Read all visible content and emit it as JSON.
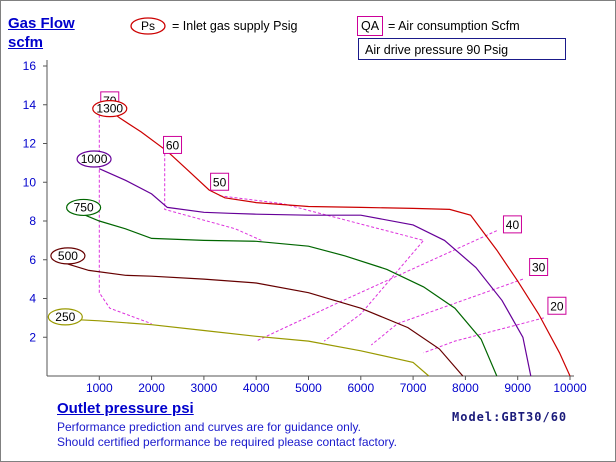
{
  "chart_data": {
    "type": "line",
    "ylabel_line1": "Gas Flow",
    "ylabel_line2": "scfm",
    "xlabel": "Outlet pressure   psi",
    "legend": {
      "ps_symbol": "Ps",
      "ps_text": "= Inlet gas supply  Psig",
      "qa_symbol": "QA",
      "qa_text": "= Air consumption  Scfm",
      "drive_pressure": "Air drive pressure  90 Psig"
    },
    "xlim": [
      0,
      10000
    ],
    "ylim": [
      0,
      16
    ],
    "x_ticks": [
      1000,
      2000,
      3000,
      4000,
      5000,
      6000,
      7000,
      8000,
      9000,
      10000
    ],
    "y_ticks": [
      2,
      4,
      6,
      8,
      10,
      12,
      14,
      16
    ],
    "series": [
      {
        "name": "1300",
        "color": "#cc0000",
        "label": "1300",
        "points": [
          [
            1000,
            14.1
          ],
          [
            1400,
            13.3
          ],
          [
            1800,
            12.6
          ],
          [
            2300,
            11.6
          ],
          [
            2700,
            10.6
          ],
          [
            3100,
            9.6
          ],
          [
            3400,
            9.2
          ],
          [
            4000,
            8.95
          ],
          [
            5000,
            8.75
          ],
          [
            6000,
            8.7
          ],
          [
            7000,
            8.65
          ],
          [
            7700,
            8.6
          ],
          [
            8100,
            8.3
          ],
          [
            8600,
            6.5
          ],
          [
            9000,
            4.9
          ],
          [
            9400,
            3.2
          ],
          [
            9800,
            1.2
          ],
          [
            10000,
            0
          ]
        ]
      },
      {
        "name": "1000",
        "color": "#660099",
        "label": "1000",
        "points": [
          [
            1000,
            10.7
          ],
          [
            1500,
            10.1
          ],
          [
            2000,
            9.4
          ],
          [
            2300,
            8.7
          ],
          [
            3000,
            8.45
          ],
          [
            3500,
            8.4
          ],
          [
            4000,
            8.35
          ],
          [
            5000,
            8.3
          ],
          [
            6000,
            8.3
          ],
          [
            7000,
            7.8
          ],
          [
            7600,
            7.0
          ],
          [
            8200,
            5.6
          ],
          [
            8700,
            3.9
          ],
          [
            9100,
            2.0
          ],
          [
            9250,
            0
          ]
        ]
      },
      {
        "name": "750",
        "color": "#006600",
        "label": "750",
        "points": [
          [
            550,
            8.5
          ],
          [
            1000,
            8.0
          ],
          [
            1500,
            7.6
          ],
          [
            2000,
            7.1
          ],
          [
            3000,
            7.0
          ],
          [
            4000,
            6.95
          ],
          [
            5000,
            6.7
          ],
          [
            5700,
            6.2
          ],
          [
            6500,
            5.5
          ],
          [
            7200,
            4.6
          ],
          [
            7800,
            3.5
          ],
          [
            8300,
            1.9
          ],
          [
            8600,
            0
          ]
        ]
      },
      {
        "name": "500",
        "color": "#660000",
        "label": "500",
        "points": [
          [
            250,
            5.9
          ],
          [
            800,
            5.45
          ],
          [
            1500,
            5.2
          ],
          [
            2000,
            5.15
          ],
          [
            3000,
            5.0
          ],
          [
            4000,
            4.8
          ],
          [
            5000,
            4.3
          ],
          [
            6000,
            3.5
          ],
          [
            6900,
            2.5
          ],
          [
            7500,
            1.4
          ],
          [
            7950,
            0
          ]
        ]
      },
      {
        "name": "250",
        "color": "#999900",
        "label": "250",
        "points": [
          [
            250,
            2.95
          ],
          [
            1000,
            2.85
          ],
          [
            2000,
            2.65
          ],
          [
            3000,
            2.35
          ],
          [
            4000,
            2.05
          ],
          [
            5000,
            1.8
          ],
          [
            6000,
            1.3
          ],
          [
            7000,
            0.7
          ],
          [
            7300,
            0
          ]
        ]
      }
    ],
    "ps_labels": [
      {
        "text": "1300",
        "x": 1200,
        "y": 13.8,
        "color": "#cc0000"
      },
      {
        "text": "1000",
        "x": 900,
        "y": 11.2,
        "color": "#660099"
      },
      {
        "text": "750",
        "x": 700,
        "y": 8.7,
        "color": "#006600"
      },
      {
        "text": "500",
        "x": 400,
        "y": 6.2,
        "color": "#660000"
      },
      {
        "text": "250",
        "x": 350,
        "y": 3.05,
        "color": "#999900"
      }
    ],
    "qa_labels": [
      {
        "text": "70",
        "x": 1200,
        "y": 14.2
      },
      {
        "text": "60",
        "x": 2400,
        "y": 11.9
      },
      {
        "text": "50",
        "x": 3300,
        "y": 10.0
      },
      {
        "text": "40",
        "x": 8900,
        "y": 7.8
      },
      {
        "text": "30",
        "x": 9400,
        "y": 5.6
      },
      {
        "text": "20",
        "x": 9750,
        "y": 3.6
      }
    ],
    "qa_lines": [
      {
        "name": "70",
        "points": [
          [
            1000,
            14.0
          ],
          [
            1000,
            4.3
          ],
          [
            1200,
            3.5
          ],
          [
            2000,
            2.7
          ]
        ]
      },
      {
        "name": "60",
        "points": [
          [
            2250,
            11.5
          ],
          [
            2250,
            8.6
          ],
          [
            3600,
            7.6
          ],
          [
            4100,
            7.0
          ]
        ]
      },
      {
        "name": "50",
        "points": [
          [
            3300,
            9.3
          ],
          [
            4500,
            8.9
          ],
          [
            7200,
            7.0
          ],
          [
            6000,
            3.2
          ],
          [
            5300,
            1.8
          ]
        ]
      },
      {
        "name": "40",
        "points": [
          [
            8600,
            7.5
          ],
          [
            5500,
            3.7
          ],
          [
            4000,
            1.8
          ]
        ]
      },
      {
        "name": "30",
        "points": [
          [
            9100,
            5.0
          ],
          [
            6700,
            2.7
          ],
          [
            6200,
            1.6
          ]
        ]
      },
      {
        "name": "20",
        "points": [
          [
            9500,
            3.0
          ],
          [
            7800,
            1.8
          ],
          [
            7200,
            1.2
          ]
        ]
      }
    ]
  },
  "model": "Model:GBT30/60",
  "notes": [
    "Performance prediction and curves are for guidance only.",
    "Should certified performance be required please contact factory."
  ]
}
